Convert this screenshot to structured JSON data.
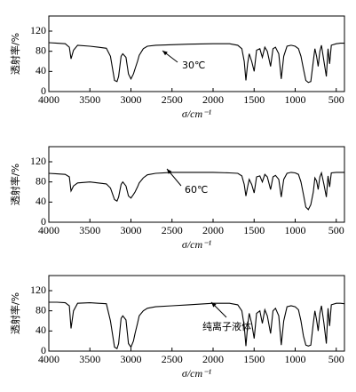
{
  "chart_data": [
    {
      "type": "line",
      "annotation": "30℃",
      "xlabel": "σ/cm⁻¹",
      "ylabel": "透射率/%",
      "xlim": [
        4000,
        400
      ],
      "ylim": [
        0,
        150
      ],
      "xticks": [
        4000,
        3500,
        3000,
        2500,
        2000,
        1500,
        1000,
        500
      ],
      "yticks": [
        0,
        40,
        80,
        120
      ],
      "x": [
        4000,
        3900,
        3800,
        3750,
        3730,
        3700,
        3650,
        3500,
        3400,
        3300,
        3250,
        3200,
        3170,
        3150,
        3120,
        3100,
        3060,
        3030,
        3000,
        2970,
        2950,
        2920,
        2900,
        2850,
        2800,
        2700,
        2500,
        2300,
        2000,
        1800,
        1700,
        1650,
        1620,
        1600,
        1580,
        1560,
        1530,
        1500,
        1470,
        1430,
        1400,
        1370,
        1340,
        1300,
        1270,
        1240,
        1200,
        1170,
        1140,
        1100,
        1050,
        1000,
        960,
        930,
        900,
        870,
        840,
        810,
        780,
        760,
        740,
        720,
        700,
        680,
        650,
        620,
        600,
        580,
        560,
        500,
        450,
        400
      ],
      "series": [
        {
          "color": "#000000",
          "values": [
            97,
            96,
            95,
            88,
            65,
            82,
            92,
            90,
            88,
            86,
            70,
            22,
            20,
            30,
            70,
            75,
            68,
            35,
            25,
            35,
            45,
            60,
            72,
            85,
            90,
            92,
            93,
            94,
            95,
            95,
            92,
            85,
            60,
            22,
            55,
            75,
            60,
            40,
            82,
            85,
            68,
            88,
            80,
            50,
            85,
            88,
            75,
            25,
            70,
            90,
            92,
            90,
            85,
            70,
            45,
            22,
            18,
            20,
            60,
            85,
            70,
            50,
            80,
            92,
            60,
            30,
            85,
            55,
            92,
            95,
            96,
            96
          ]
        }
      ]
    },
    {
      "type": "line",
      "annotation": "60℃",
      "xlabel": "σ/cm⁻¹",
      "ylabel": "透射率/%",
      "xlim": [
        4000,
        400
      ],
      "ylim": [
        0,
        150
      ],
      "xticks": [
        4000,
        3500,
        3000,
        2500,
        2000,
        1500,
        1000,
        500
      ],
      "yticks": [
        0,
        40,
        80,
        120
      ],
      "x": [
        4000,
        3900,
        3800,
        3750,
        3730,
        3700,
        3650,
        3500,
        3400,
        3300,
        3250,
        3200,
        3170,
        3150,
        3120,
        3100,
        3060,
        3030,
        3000,
        2970,
        2950,
        2920,
        2900,
        2850,
        2800,
        2700,
        2500,
        2300,
        2000,
        1800,
        1700,
        1650,
        1620,
        1600,
        1580,
        1560,
        1530,
        1500,
        1470,
        1430,
        1400,
        1370,
        1340,
        1300,
        1270,
        1240,
        1200,
        1170,
        1140,
        1100,
        1050,
        1000,
        960,
        930,
        900,
        870,
        840,
        810,
        780,
        760,
        740,
        720,
        700,
        680,
        650,
        620,
        600,
        580,
        560,
        500,
        450,
        400
      ],
      "series": [
        {
          "color": "#000000",
          "values": [
            97,
            96,
            95,
            90,
            62,
            72,
            78,
            80,
            78,
            76,
            68,
            45,
            42,
            50,
            75,
            80,
            72,
            52,
            48,
            55,
            60,
            70,
            78,
            88,
            94,
            97,
            99,
            99,
            99,
            98,
            97,
            92,
            75,
            52,
            70,
            85,
            75,
            58,
            90,
            92,
            80,
            95,
            90,
            65,
            90,
            93,
            85,
            50,
            85,
            97,
            99,
            98,
            95,
            80,
            55,
            30,
            25,
            35,
            60,
            88,
            82,
            65,
            90,
            98,
            75,
            50,
            92,
            70,
            98,
            99,
            99,
            99
          ]
        }
      ]
    },
    {
      "type": "line",
      "annotation": "纯离子液体",
      "xlabel": "σ/cm⁻¹",
      "ylabel": "透射率/%",
      "xlim": [
        4000,
        400
      ],
      "ylim": [
        0,
        150
      ],
      "xticks": [
        4000,
        3500,
        3000,
        2500,
        2000,
        1500,
        1000,
        500
      ],
      "yticks": [
        0,
        40,
        80,
        120
      ],
      "x": [
        4000,
        3900,
        3800,
        3750,
        3730,
        3700,
        3650,
        3500,
        3400,
        3300,
        3250,
        3200,
        3170,
        3150,
        3120,
        3100,
        3060,
        3030,
        3000,
        2970,
        2950,
        2920,
        2900,
        2850,
        2800,
        2700,
        2500,
        2300,
        2000,
        1800,
        1700,
        1650,
        1620,
        1600,
        1580,
        1560,
        1530,
        1500,
        1470,
        1430,
        1400,
        1370,
        1340,
        1300,
        1270,
        1240,
        1200,
        1170,
        1140,
        1100,
        1050,
        1000,
        960,
        930,
        900,
        870,
        840,
        810,
        780,
        760,
        740,
        720,
        700,
        680,
        650,
        620,
        600,
        580,
        560,
        500,
        450,
        400
      ],
      "series": [
        {
          "color": "#000000",
          "values": [
            97,
            97,
            96,
            90,
            45,
            80,
            95,
            96,
            95,
            94,
            60,
            8,
            5,
            15,
            65,
            70,
            62,
            15,
            8,
            20,
            35,
            55,
            70,
            80,
            85,
            88,
            90,
            92,
            95,
            95,
            92,
            80,
            50,
            10,
            50,
            75,
            55,
            25,
            75,
            80,
            55,
            82,
            70,
            35,
            80,
            85,
            70,
            12,
            60,
            88,
            90,
            88,
            82,
            60,
            30,
            12,
            10,
            12,
            55,
            80,
            62,
            40,
            75,
            90,
            55,
            15,
            85,
            50,
            92,
            95,
            95,
            94
          ]
        }
      ]
    }
  ]
}
